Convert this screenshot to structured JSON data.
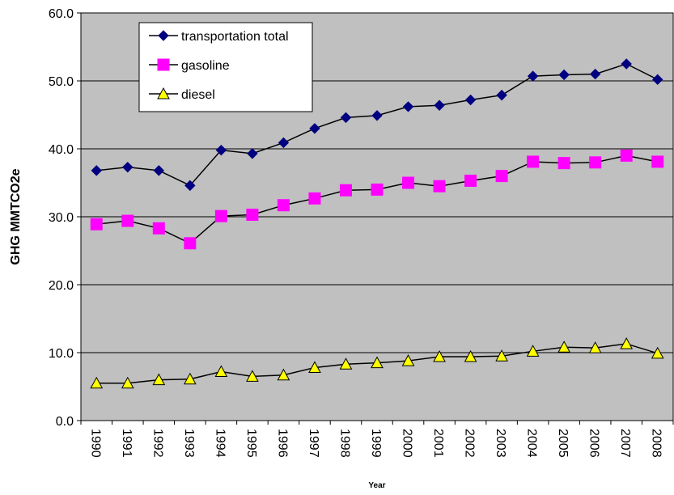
{
  "chart_data": {
    "type": "line",
    "y_label": "GHG MMTCO2e",
    "x_label": "Year",
    "categories": [
      "1990",
      "1991",
      "1992",
      "1993",
      "1994",
      "1995",
      "1996",
      "1997",
      "1998",
      "1999",
      "2000",
      "2001",
      "2002",
      "2003",
      "2004",
      "2005",
      "2006",
      "2007",
      "2008"
    ],
    "series": [
      {
        "name": "transportation total",
        "color": "#000080",
        "marker": "diamond",
        "values": [
          36.8,
          37.3,
          36.8,
          34.6,
          39.8,
          39.3,
          40.9,
          43.0,
          44.6,
          44.9,
          46.2,
          46.4,
          47.2,
          47.9,
          50.7,
          50.9,
          51.0,
          52.5,
          50.2
        ]
      },
      {
        "name": "gasoline",
        "color": "#ff00ff",
        "marker": "square",
        "values": [
          28.9,
          29.4,
          28.3,
          26.1,
          30.1,
          30.3,
          31.7,
          32.7,
          33.9,
          34.0,
          35.0,
          34.5,
          35.3,
          36.0,
          38.1,
          37.9,
          38.0,
          39.0,
          38.1
        ]
      },
      {
        "name": "diesel",
        "color": "#ffff00",
        "marker": "triangle",
        "values": [
          5.5,
          5.5,
          6.0,
          6.1,
          7.2,
          6.5,
          6.7,
          7.8,
          8.3,
          8.5,
          8.8,
          9.4,
          9.4,
          9.5,
          10.2,
          10.8,
          10.7,
          11.3,
          9.9
        ]
      }
    ],
    "ylim": [
      0,
      60
    ],
    "yticks": [
      {
        "value": 0,
        "label": "0.0"
      },
      {
        "value": 10,
        "label": "10.0"
      },
      {
        "value": 20,
        "label": "20.0"
      },
      {
        "value": 30,
        "label": "30.0"
      },
      {
        "value": 40,
        "label": "40.0"
      },
      {
        "value": 50,
        "label": "50.0"
      },
      {
        "value": 60,
        "label": "60.0"
      }
    ],
    "grid": true,
    "legend": "upper left",
    "plot_background": "#c0c0c0"
  }
}
